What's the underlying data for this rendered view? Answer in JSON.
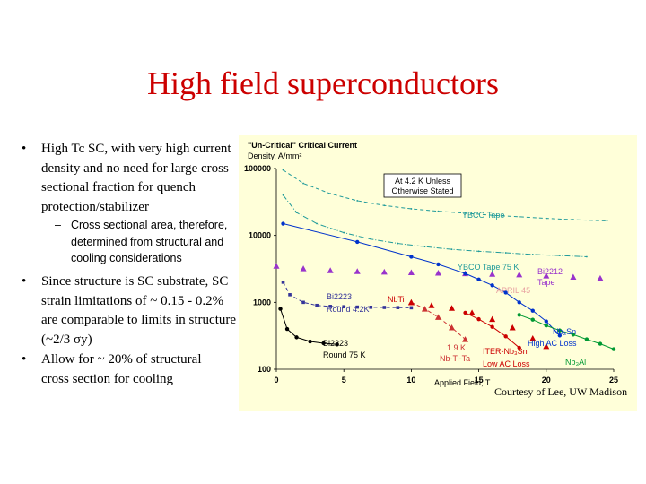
{
  "slide": {
    "title": "High field superconductors",
    "bullets": [
      {
        "marker": "•",
        "text": "High Tc SC, with very high current density and no need for large cross sectional fraction for quench protection/stabilizer"
      },
      {
        "marker": "–",
        "text": "Cross sectional area, therefore, determined from structural and cooling considerations"
      },
      {
        "marker": "•",
        "text": "Since structure is SC substrate, SC strain limitations of ~ 0.15 - 0.2% are comparable to limits in structure (~2/3 σy)"
      },
      {
        "marker": "•",
        "text": "Allow for ~ 20% of structural cross section for cooling"
      }
    ],
    "credit": "Courtesy of Lee, UW Madison"
  },
  "chart_data": {
    "type": "scatter",
    "title": "\"Un-Critical\" Critical Current Density, A/mm²",
    "xlabel": "Applied Field, T",
    "ylabel": "",
    "x_ticks": [
      "0",
      "5",
      "10",
      "15",
      "20",
      "25"
    ],
    "y_ticks": [
      "100",
      "1000",
      "10000",
      "100000"
    ],
    "xlim": [
      0,
      25
    ],
    "ylim": [
      100,
      100000
    ],
    "yscale": "log",
    "background": "#ffffd9",
    "annotation_box": "At 4.2 K Unless Otherwise Stated",
    "series": [
      {
        "name": "YBCO Tape",
        "color": "#1f9a9a",
        "style": "dash",
        "x": [
          0.5,
          2,
          4,
          6,
          8,
          10,
          12,
          14,
          16,
          18,
          20,
          22,
          24.5
        ],
        "y": [
          95000,
          60000,
          42000,
          33000,
          28000,
          25000,
          23000,
          21500,
          20000,
          19000,
          18000,
          17200,
          16500
        ]
      },
      {
        "name": "YBCO Tape 75 K",
        "color": "#1f9a9a",
        "style": "dashdot",
        "x": [
          0.5,
          1.5,
          3,
          5,
          7,
          9,
          11,
          13,
          15,
          17,
          19,
          21,
          23
        ],
        "y": [
          40000,
          22000,
          15000,
          11000,
          8800,
          7600,
          6800,
          6200,
          5800,
          5500,
          5200,
          5000,
          4800
        ]
      },
      {
        "name": "Bi2212 Tape",
        "color": "#9933cc",
        "style": "triangles",
        "x": [
          0,
          2,
          4,
          6,
          8,
          10,
          12,
          14,
          16,
          18,
          20,
          22,
          24
        ],
        "y": [
          3500,
          3200,
          3000,
          2900,
          2850,
          2800,
          2750,
          2700,
          2650,
          2600,
          2500,
          2400,
          2300
        ]
      },
      {
        "name": "Bi2223 Round 4.2K",
        "color": "#333399",
        "style": "dash-square",
        "x": [
          0.5,
          1,
          2,
          3,
          4,
          5,
          6,
          7,
          8,
          9,
          10
        ],
        "y": [
          2000,
          1300,
          1000,
          900,
          870,
          860,
          850,
          845,
          840,
          835,
          830
        ]
      },
      {
        "name": "Bi2223 Round 75 K",
        "color": "#000000",
        "style": "dot-line",
        "x": [
          0.3,
          0.8,
          1.5,
          2.5,
          3.5,
          4.5
        ],
        "y": [
          800,
          400,
          300,
          260,
          245,
          235
        ]
      },
      {
        "name": "Nb3Sn",
        "color": "#0033cc",
        "style": "dot-line",
        "x": [
          0.5,
          6,
          10,
          12,
          14,
          15,
          16,
          17,
          18,
          19,
          20,
          21
        ],
        "y": [
          15000,
          8000,
          4800,
          3700,
          2700,
          2200,
          1800,
          1400,
          1000,
          750,
          520,
          320
        ]
      },
      {
        "name": "Nb3Al",
        "color": "#009933",
        "style": "dot-line",
        "x": [
          18,
          19,
          20,
          21,
          22,
          23,
          24,
          25
        ],
        "y": [
          650,
          550,
          450,
          380,
          330,
          280,
          240,
          200
        ]
      },
      {
        "name": "Nb-Ti-Ta",
        "color": "#cc3333",
        "style": "dash-triangle",
        "x": [
          10,
          11,
          12,
          13,
          14
        ],
        "y": [
          1000,
          800,
          600,
          420,
          280
        ]
      },
      {
        "name": "NbTi",
        "color": "#cc0000",
        "style": "triangles",
        "x": [
          10,
          11.5,
          13,
          14.5,
          16,
          17.5,
          19,
          20
        ],
        "y": [
          1000,
          900,
          820,
          700,
          560,
          420,
          290,
          220
        ]
      },
      {
        "name": "ITER-Nb3Sn",
        "color": "#cc0000",
        "style": "dot-line",
        "x": [
          14,
          15,
          16,
          17,
          18
        ],
        "y": [
          700,
          560,
          430,
          310,
          210
        ]
      }
    ],
    "labels": [
      "YBCO Tape",
      "YBCO Tape 75 K",
      "Bi2212 Tape",
      "Bi2223 Round 4.2K",
      "Bi2223 Round 75 K",
      "1.9 K Nb-Ti-Ta",
      "ITER-Nb3Sn Low AC Loss",
      "Nb3Sn High AC Loss",
      "Nb3Al",
      "NbTi",
      "Applied Field, T"
    ],
    "annotation_faded": "APRIL 45"
  }
}
